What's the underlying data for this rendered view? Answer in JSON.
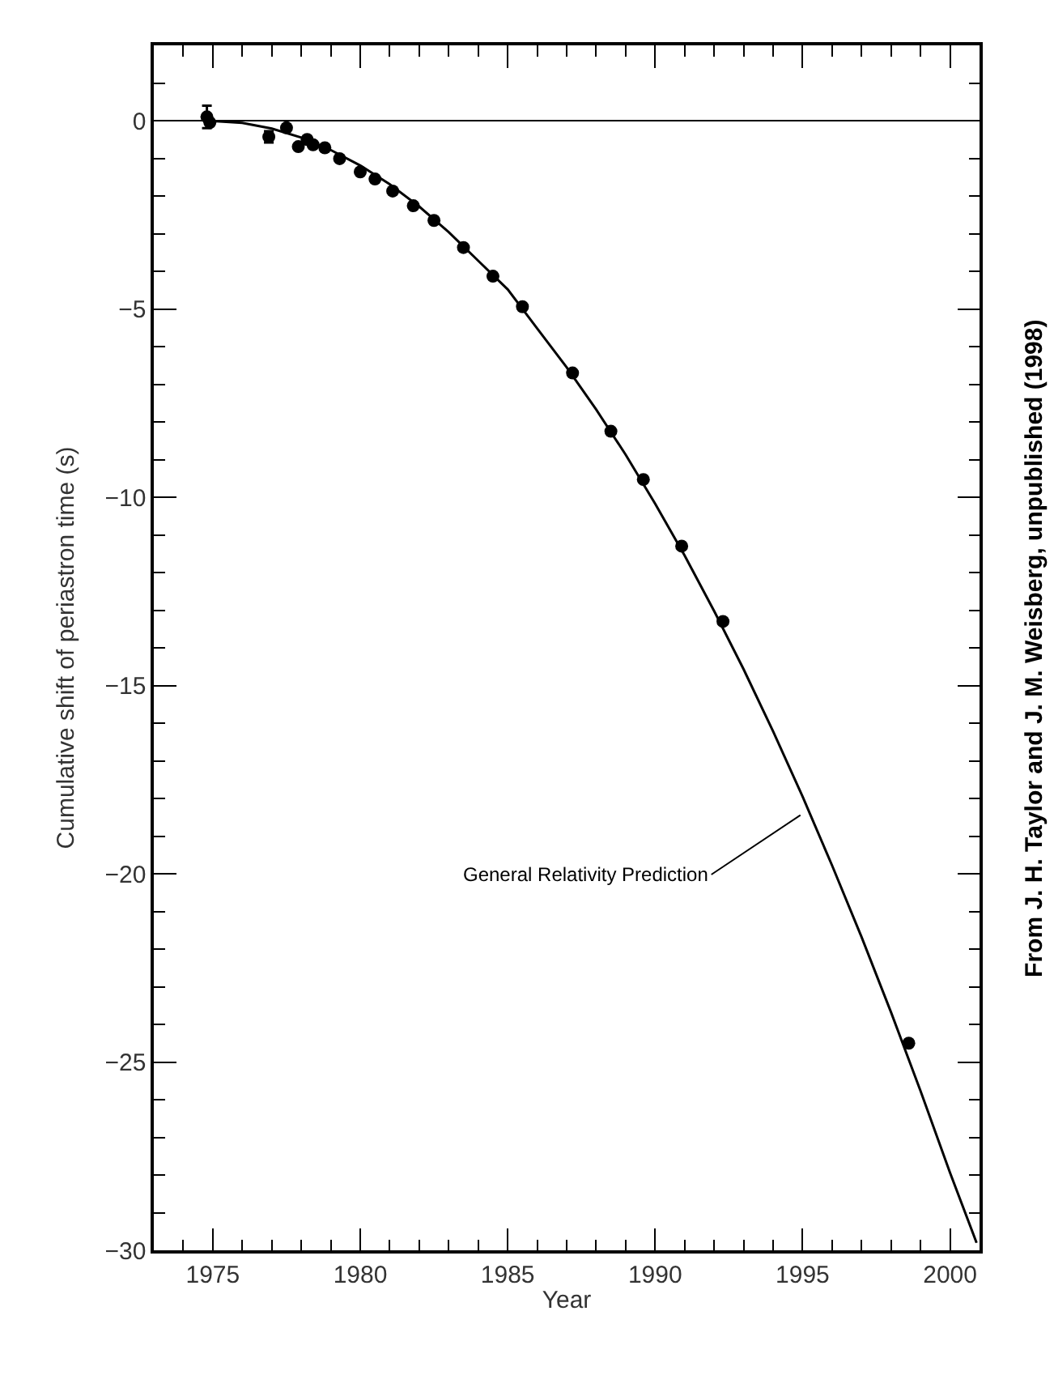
{
  "chart_data": {
    "type": "scatter",
    "xlabel": "Year",
    "ylabel": "Cumulative shift of periastron time (s)",
    "xlim": [
      1973,
      2001
    ],
    "xticks": [
      1975,
      1980,
      1985,
      1990,
      1995,
      2000
    ],
    "ylim": [
      -30,
      2
    ],
    "yticks": [
      -30,
      -25,
      -20,
      -15,
      -10,
      -5,
      0
    ],
    "legend": false,
    "marker": "circle",
    "ref_lines": [
      {
        "axis": "y",
        "value": 0,
        "color": "#000000"
      }
    ],
    "series": [
      {
        "color": "#000000",
        "x": [
          1974.8,
          1974.9,
          1976.9,
          1977.5,
          1977.9,
          1978.2,
          1978.4,
          1978.8,
          1979.3,
          1980.0,
          1980.5,
          1981.1,
          1981.8,
          1982.5,
          1983.5,
          1984.5,
          1985.5,
          1987.2,
          1988.5,
          1989.6,
          1990.9,
          1992.3,
          1998.6
        ],
        "values": [
          0.1,
          -0.05,
          -0.43,
          -0.19,
          -0.69,
          -0.5,
          -0.64,
          -0.72,
          -1.01,
          -1.36,
          -1.55,
          -1.87,
          -2.26,
          -2.65,
          -3.37,
          -4.13,
          -4.94,
          -6.7,
          -8.25,
          -9.53,
          -11.3,
          -13.3,
          -24.5
        ],
        "errors": [
          0.3,
          null,
          0.15,
          null,
          null,
          null,
          null,
          null,
          null,
          null,
          null,
          null,
          null,
          null,
          null,
          null,
          null,
          null,
          null,
          null,
          null,
          null,
          null
        ]
      },
      {
        "type": "line",
        "color": "#000000",
        "line_style": "solid",
        "marker": "none",
        "x": [
          1974.8,
          1976,
          1977,
          1978,
          1979,
          1980,
          1981,
          1982,
          1983,
          1984,
          1985,
          1986,
          1987,
          1988,
          1989,
          1990,
          1991,
          1992,
          1993,
          1994,
          1995,
          1996,
          1997,
          1998,
          1999,
          2000,
          2000.9
        ],
        "values": [
          0,
          -0.06,
          -0.21,
          -0.45,
          -0.78,
          -1.19,
          -1.69,
          -2.28,
          -2.96,
          -3.72,
          -4.48,
          -5.52,
          -6.55,
          -7.67,
          -8.87,
          -10.17,
          -11.55,
          -13.02,
          -14.57,
          -16.22,
          -17.95,
          -19.78,
          -21.68,
          -23.68,
          -25.77,
          -27.94,
          -29.8
        ]
      }
    ],
    "annotations": [
      {
        "text": "General Relativity Prediction",
        "x": 1995.2,
        "y": -18.3
      },
      "From J. H. Taylor and J. M. Weisberg, unpublished (1998)"
    ]
  }
}
